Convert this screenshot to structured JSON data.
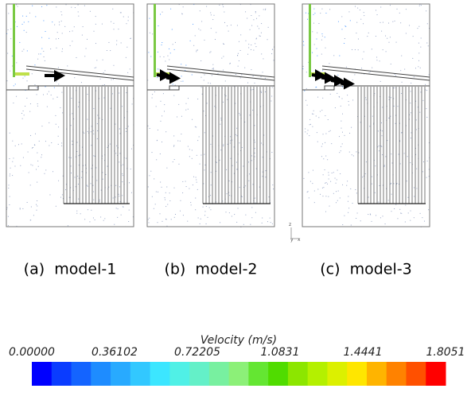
{
  "panels": [
    {
      "caption": "(a)  model-1"
    },
    {
      "caption": "(b)  model-2"
    },
    {
      "caption": "(c)  model-3"
    }
  ],
  "axis_triad": {
    "z": "z",
    "y": "y",
    "x": "x"
  },
  "colorbar": {
    "title": "Velocity (m/s)",
    "lim": [
      0,
      1.8051
    ],
    "ticks": [
      {
        "value": 0,
        "label": "0.00000"
      },
      0.36102,
      0.72205,
      1.0831,
      1.4441,
      1.8051
    ],
    "colors": [
      "#0000ff",
      "#0a3cff",
      "#1464ff",
      "#1e8cff",
      "#28aaff",
      "#32c8ff",
      "#3ce6ff",
      "#50f0e6",
      "#64f0c8",
      "#78f0a0",
      "#8cf078",
      "#64e632",
      "#50dc00",
      "#8ce600",
      "#b4f000",
      "#dcf000",
      "#ffe600",
      "#ffb400",
      "#ff8200",
      "#ff5000",
      "#ff0000"
    ]
  }
}
